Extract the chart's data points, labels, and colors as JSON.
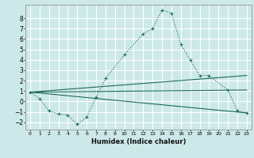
{
  "title": "",
  "xlabel": "Humidex (Indice chaleur)",
  "background_color": "#cde8e8",
  "grid_color": "#ffffff",
  "line_color": "#1a6b5a",
  "xlim": [
    -0.5,
    23.5
  ],
  "ylim": [
    -2.7,
    9.3
  ],
  "yticks": [
    -2,
    -1,
    0,
    1,
    2,
    3,
    4,
    5,
    6,
    7,
    8
  ],
  "xticks": [
    0,
    1,
    2,
    3,
    4,
    5,
    6,
    7,
    8,
    9,
    10,
    11,
    12,
    13,
    14,
    15,
    16,
    17,
    18,
    19,
    20,
    21,
    22,
    23
  ],
  "main_x": [
    0,
    1,
    2,
    3,
    4,
    5,
    6,
    7,
    8,
    10,
    12,
    13,
    14,
    15,
    16,
    17,
    18,
    19,
    21,
    22,
    23
  ],
  "main_y": [
    0.9,
    0.3,
    -0.9,
    -1.2,
    -1.3,
    -2.2,
    -1.5,
    0.4,
    2.2,
    4.5,
    6.5,
    7.0,
    8.8,
    8.5,
    5.5,
    4.0,
    2.5,
    2.5,
    1.1,
    -0.9,
    -1.1
  ],
  "line1_x": [
    0,
    23
  ],
  "line1_y": [
    0.9,
    -1.1
  ],
  "line2_x": [
    0,
    23
  ],
  "line2_y": [
    0.9,
    1.1
  ],
  "line3_x": [
    0,
    23
  ],
  "line3_y": [
    0.9,
    2.5
  ]
}
